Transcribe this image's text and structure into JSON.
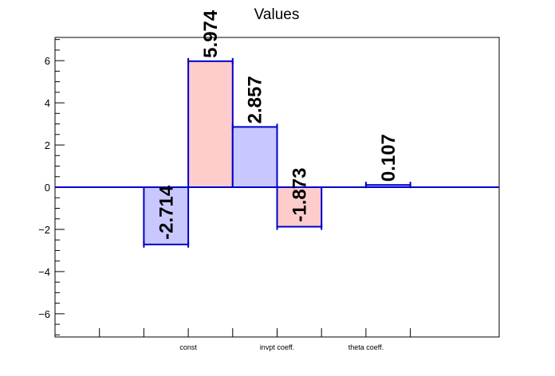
{
  "chart_data": {
    "type": "bar",
    "title": "Values",
    "xlabel": "",
    "ylabel": "",
    "ylim": [
      -7.1,
      7.1
    ],
    "yticks": [
      -6,
      -4,
      -2,
      0,
      2,
      4,
      6
    ],
    "categories": [
      "const",
      "invpt coeff.",
      "theta coeff."
    ],
    "bars": [
      {
        "slot": 0,
        "value": -2.714,
        "label": "-2.714",
        "color": "#c8c8ff",
        "edge": "#0000cc"
      },
      {
        "slot": 1,
        "value": 5.974,
        "label": "5.974",
        "color": "#ffcccc",
        "edge": "#0000cc"
      },
      {
        "slot": 2,
        "value": 2.857,
        "label": "2.857",
        "color": "#c8c8ff",
        "edge": "#0000cc"
      },
      {
        "slot": 3,
        "value": -1.873,
        "label": "-1.873",
        "color": "#ffcccc",
        "edge": "#0000cc"
      },
      {
        "slot": 4,
        "value": 0,
        "label": "",
        "color": "#c8c8ff",
        "edge": "#0000cc"
      },
      {
        "slot": 5,
        "value": 0.107,
        "label": "0.107",
        "color": "#c8c8ff",
        "edge": "#0000cc"
      }
    ],
    "grid": false,
    "legend": "none"
  }
}
